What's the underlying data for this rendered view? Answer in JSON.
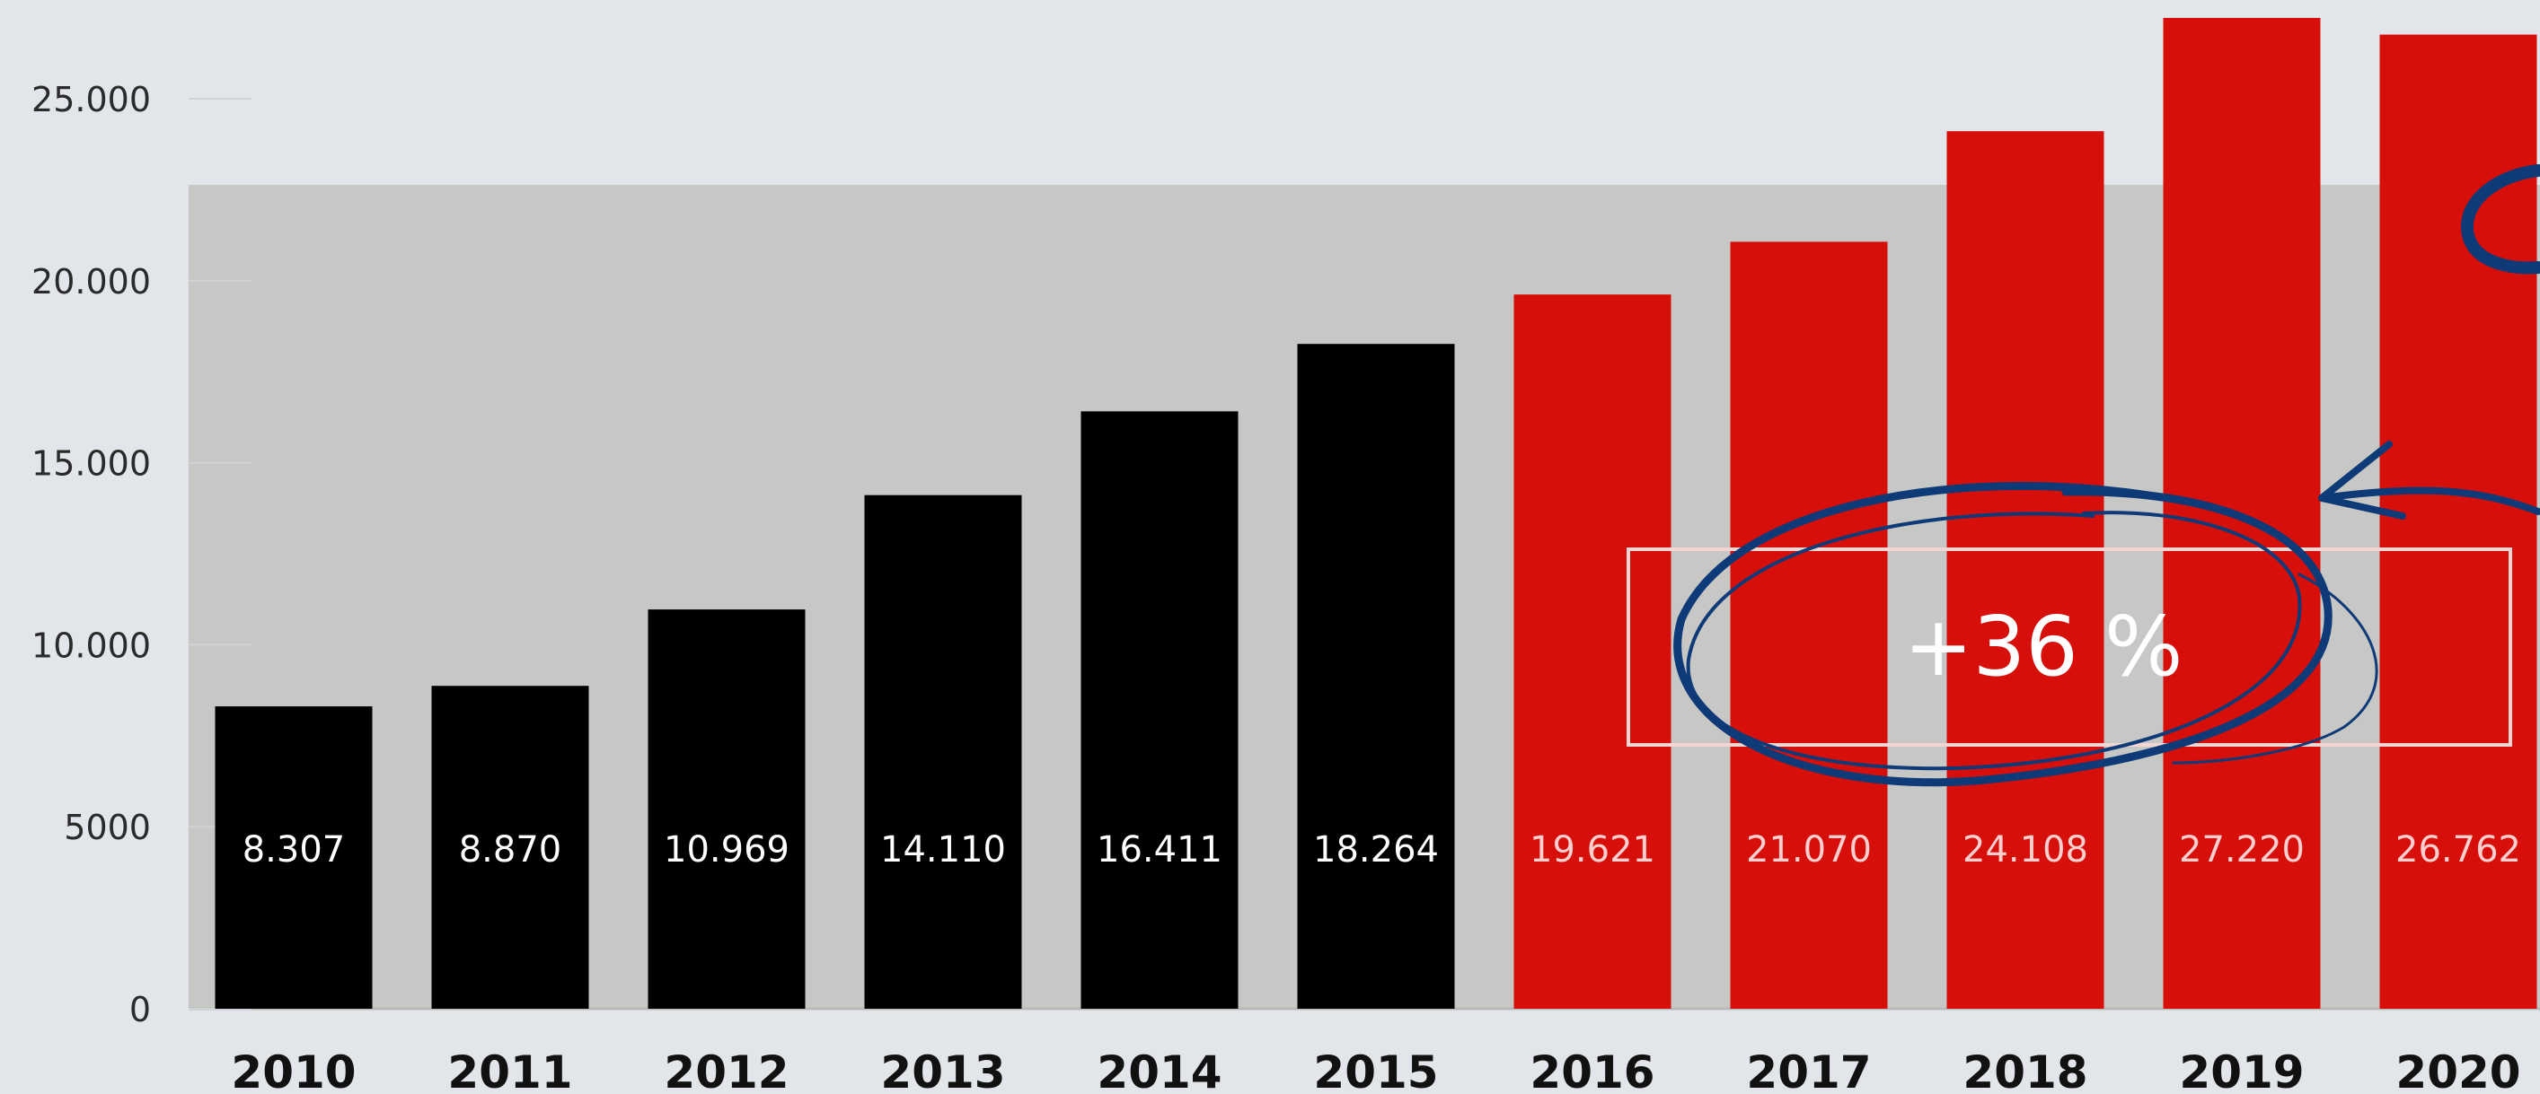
{
  "chart_data": {
    "type": "bar",
    "categories": [
      "2010",
      "2011",
      "2012",
      "2013",
      "2014",
      "2015",
      "2016",
      "2017",
      "2018",
      "2019",
      "2020"
    ],
    "values": [
      8307,
      8870,
      10969,
      14110,
      16411,
      18264,
      19621,
      21070,
      24108,
      27220,
      26762
    ],
    "data_labels": [
      "8.307",
      "8.870",
      "10.969",
      "14.110",
      "16.411",
      "18.264",
      "19.621",
      "21.070",
      "24.108",
      "27.220",
      "26.762"
    ],
    "yticks": [
      0,
      5000,
      10000,
      15000,
      20000,
      25000
    ],
    "ytick_labels": [
      "0",
      "5000",
      "10.000",
      "15.000",
      "20.000",
      "25.000"
    ],
    "ylim": [
      0,
      27000
    ],
    "title": "",
    "xlabel": "",
    "ylabel": "",
    "grid": false,
    "highlight_from_category": "2016",
    "colors": {
      "background": "#e2e6ea",
      "band": "#c7c7c5",
      "bar_before": "#000000",
      "bar_after": "#d60f0a",
      "label_before": "#ffffff",
      "label_after": "#ffcfcf",
      "annotation_ink": "#0e3a78"
    },
    "annotation": {
      "text": "+36 %",
      "spans": [
        "2016",
        "2020"
      ]
    }
  }
}
